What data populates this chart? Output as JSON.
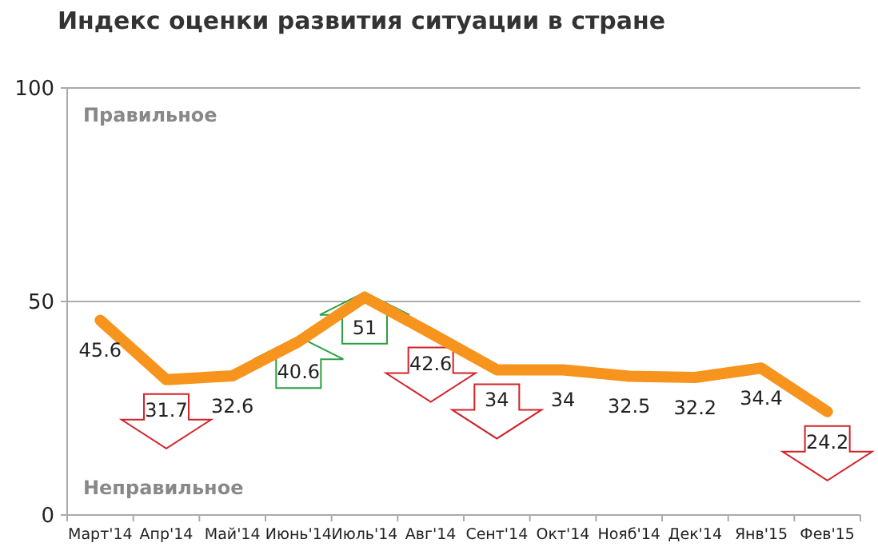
{
  "chart_data": {
    "type": "line",
    "title": "Индекс оценки развития ситуации в стране",
    "categories": [
      "Март'14",
      "Апр'14",
      "Май'14",
      "Июнь'14",
      "Июль'14",
      "Авг'14",
      "Сент'14",
      "Окт'14",
      "Нояб'14",
      "Дек'14",
      "Янв'15",
      "Фев'15"
    ],
    "series": [
      {
        "color": "#f7941d",
        "values": [
          45.6,
          31.7,
          32.6,
          40.6,
          51,
          42.6,
          34,
          34,
          32.5,
          32.2,
          34.4,
          24.2
        ]
      }
    ],
    "ylim": [
      0,
      100
    ],
    "yticks": [
      0,
      50,
      100
    ],
    "grid": "y",
    "data_labels": true,
    "marker": "none",
    "line_style": "solid",
    "annotations": [
      "Правильное",
      "Неправильное"
    ]
  }
}
